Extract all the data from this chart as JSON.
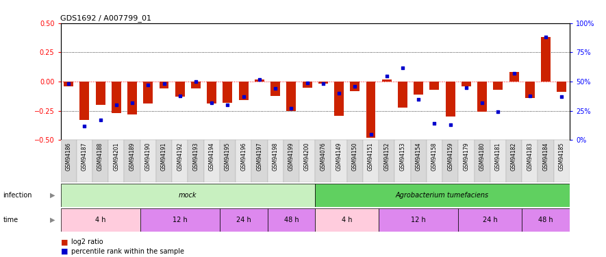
{
  "title": "GDS1692 / A007799_01",
  "samples": [
    "GSM94186",
    "GSM94187",
    "GSM94188",
    "GSM94201",
    "GSM94189",
    "GSM94190",
    "GSM94191",
    "GSM94192",
    "GSM94193",
    "GSM94194",
    "GSM94195",
    "GSM94196",
    "GSM94197",
    "GSM94198",
    "GSM94199",
    "GSM94200",
    "GSM94076",
    "GSM94149",
    "GSM94150",
    "GSM94151",
    "GSM94152",
    "GSM94153",
    "GSM94154",
    "GSM94158",
    "GSM94159",
    "GSM94179",
    "GSM94180",
    "GSM94181",
    "GSM94182",
    "GSM94183",
    "GSM94184",
    "GSM94185"
  ],
  "log2_ratio": [
    -0.04,
    -0.33,
    -0.2,
    -0.27,
    -0.28,
    -0.19,
    -0.06,
    -0.13,
    -0.06,
    -0.19,
    -0.18,
    -0.16,
    0.02,
    -0.12,
    -0.25,
    -0.05,
    -0.02,
    -0.29,
    -0.08,
    -0.48,
    0.02,
    -0.22,
    -0.11,
    -0.07,
    -0.3,
    -0.04,
    -0.26,
    -0.07,
    0.08,
    -0.14,
    0.38,
    -0.09
  ],
  "percentile_rank": [
    48,
    12,
    17,
    30,
    32,
    47,
    48,
    38,
    50,
    32,
    30,
    37,
    52,
    44,
    27,
    49,
    48,
    40,
    46,
    5,
    55,
    62,
    35,
    14,
    13,
    45,
    32,
    24,
    57,
    38,
    88,
    37
  ],
  "infection_groups": [
    {
      "label": "mock",
      "start": 0,
      "end": 16,
      "color": "#c8f0c0"
    },
    {
      "label": "Agrobacterium tumefaciens",
      "start": 16,
      "end": 32,
      "color": "#60d060"
    }
  ],
  "time_groups": [
    {
      "label": "4 h",
      "start": 0,
      "end": 5,
      "color": "#ffccdd"
    },
    {
      "label": "12 h",
      "start": 5,
      "end": 10,
      "color": "#dd88ee"
    },
    {
      "label": "24 h",
      "start": 10,
      "end": 13,
      "color": "#dd88ee"
    },
    {
      "label": "48 h",
      "start": 13,
      "end": 16,
      "color": "#dd88ee"
    },
    {
      "label": "4 h",
      "start": 16,
      "end": 20,
      "color": "#ffccdd"
    },
    {
      "label": "12 h",
      "start": 20,
      "end": 25,
      "color": "#dd88ee"
    },
    {
      "label": "24 h",
      "start": 25,
      "end": 29,
      "color": "#dd88ee"
    },
    {
      "label": "48 h",
      "start": 29,
      "end": 32,
      "color": "#dd88ee"
    }
  ],
  "ylim_left": [
    -0.5,
    0.5
  ],
  "yticks_left": [
    -0.5,
    -0.25,
    0.0,
    0.25,
    0.5
  ],
  "yticks_right": [
    0,
    25,
    50,
    75,
    100
  ],
  "ytick_labels_right": [
    "0%",
    "25%",
    "50%",
    "75%",
    "100%"
  ],
  "hlines_dotted": [
    -0.25,
    0.25
  ],
  "bar_color": "#CC2200",
  "scatter_color": "#0000CC",
  "bar_width": 0.6,
  "scatter_size": 12,
  "tick_bg_even": "#d8d8d8",
  "tick_bg_odd": "#e8e8e8"
}
